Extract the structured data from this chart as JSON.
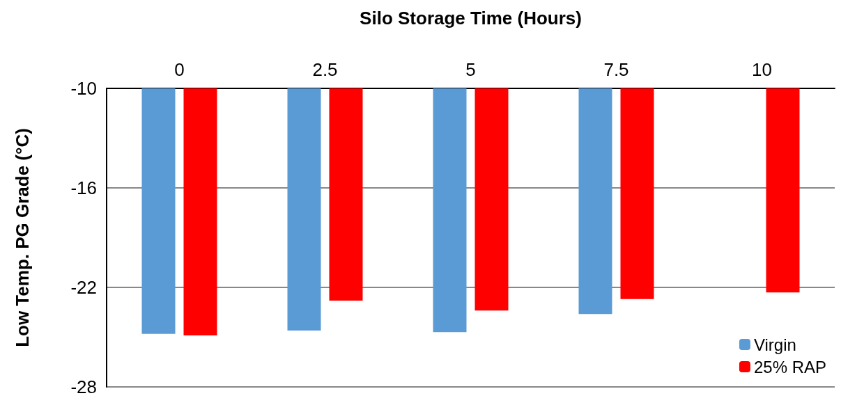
{
  "chart_data": {
    "type": "bar",
    "xlabel": "Silo Storage Time (Hours)",
    "ylabel": "Low Temp. PG Grade (°C)",
    "categories": [
      "0",
      "2.5",
      "5",
      "7.5",
      "10"
    ],
    "series": [
      {
        "name": "Virgin",
        "color": "#5b9bd5",
        "values": [
          -24.8,
          -24.6,
          -24.7,
          -23.6,
          null
        ]
      },
      {
        "name": "25% RAP",
        "color": "#ff0000",
        "values": [
          -24.9,
          -22.8,
          -23.4,
          -22.7,
          -22.3
        ]
      }
    ],
    "ylim": [
      -28,
      -10
    ],
    "yticks": [
      -10,
      -16,
      -22,
      -28
    ],
    "grid": "y",
    "legend": "bottom right"
  }
}
